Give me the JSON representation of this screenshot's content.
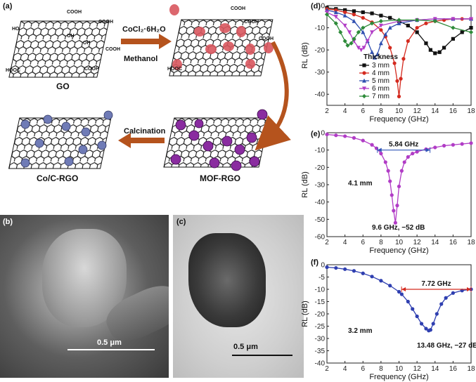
{
  "panels": {
    "a": "(a)",
    "b": "(b)",
    "c": "(c)",
    "d": "(d)",
    "e": "(e)",
    "f": "(f)"
  },
  "schematic": {
    "go_label": "GO",
    "reagent_top": "CoCl₂·6H₂O",
    "reagent_bottom": "Methanol",
    "mof_label": "MOF-RGO",
    "coc_label": "Co/C-RGO",
    "calcination": "Calcination",
    "cooh": "COOH",
    "hooc": "HOOC",
    "oh": "OH",
    "ho": "HO",
    "o": "O",
    "co2": "Co²⁺"
  },
  "micrographs": {
    "b_scale": "0.5 μm",
    "c_scale": "0.5 μm"
  },
  "chart_data": [
    {
      "id": "d",
      "type": "line",
      "xlabel": "Frequency (GHz)",
      "ylabel": "RL (dB)",
      "xlim": [
        2,
        18
      ],
      "ylim": [
        -45,
        0
      ],
      "xticks": [
        2,
        4,
        6,
        8,
        10,
        12,
        14,
        16,
        18
      ],
      "yticks": [
        0,
        -10,
        -20,
        -30,
        -40
      ],
      "legend_title": "Thickness",
      "series": [
        {
          "name": "3 mm",
          "color": "#111111",
          "marker": "square",
          "x": [
            2,
            3,
            4,
            5,
            6,
            7,
            8,
            9,
            10,
            11,
            12,
            13,
            13.5,
            14,
            14.5,
            15,
            16,
            17,
            18
          ],
          "y": [
            -1,
            -1.5,
            -2,
            -2.5,
            -3,
            -3.5,
            -4.5,
            -5.5,
            -7,
            -9,
            -12,
            -17,
            -20,
            -21.5,
            -21,
            -19,
            -15,
            -12,
            -10
          ]
        },
        {
          "name": "4 mm",
          "color": "#d42a1f",
          "marker": "circle",
          "x": [
            2,
            3,
            4,
            5,
            6,
            7,
            8,
            8.5,
            9,
            9.5,
            9.8,
            10,
            10.2,
            10.5,
            11,
            12,
            13,
            14,
            15,
            16,
            17,
            18
          ],
          "y": [
            -1.5,
            -2,
            -3,
            -4,
            -5.5,
            -7.5,
            -11,
            -14,
            -19,
            -26,
            -34,
            -41,
            -33,
            -24,
            -16,
            -10,
            -8,
            -7,
            -6.5,
            -6,
            -6,
            -6
          ]
        },
        {
          "name": "5 mm",
          "color": "#2f4fb0",
          "marker": "triangle",
          "x": [
            2,
            3,
            4,
            5,
            6,
            6.5,
            7,
            7.3,
            7.6,
            8,
            8.5,
            9,
            10,
            12,
            14,
            16,
            18
          ],
          "y": [
            -2,
            -3,
            -4.5,
            -7,
            -12,
            -16,
            -21,
            -23.5,
            -22,
            -17,
            -13,
            -10,
            -8,
            -6.5,
            -6,
            -6,
            -6
          ]
        },
        {
          "name": "6 mm",
          "color": "#b13cc6",
          "marker": "triangle-down",
          "x": [
            2,
            3,
            4,
            4.5,
            5,
            5.5,
            5.8,
            6.1,
            6.5,
            7,
            8,
            10,
            12,
            14,
            16,
            18
          ],
          "y": [
            -3,
            -5,
            -9,
            -12,
            -16,
            -19,
            -20,
            -19,
            -16,
            -12,
            -9,
            -7,
            -6.5,
            -6,
            -6,
            -6
          ]
        },
        {
          "name": "7 mm",
          "color": "#2e8b3a",
          "marker": "diamond",
          "x": [
            2,
            3,
            3.5,
            4,
            4.3,
            4.7,
            5,
            5.5,
            6,
            7,
            8,
            10,
            12,
            14,
            16,
            18
          ],
          "y": [
            -4,
            -8,
            -12,
            -16,
            -18,
            -17,
            -15,
            -12,
            -10,
            -8,
            -7,
            -6.5,
            -6.5,
            -7,
            -10,
            -12
          ]
        }
      ]
    },
    {
      "id": "e",
      "type": "line",
      "xlabel": "Frequency (GHz)",
      "ylabel": "RL (dB)",
      "xlim": [
        2,
        18
      ],
      "ylim": [
        -60,
        0
      ],
      "xticks": [
        2,
        4,
        6,
        8,
        10,
        12,
        14,
        16,
        18
      ],
      "yticks": [
        0,
        -10,
        -20,
        -30,
        -40,
        -50,
        -60
      ],
      "color": "#b13cc6",
      "x": [
        2,
        3,
        4,
        5,
        6,
        7,
        7.5,
        8,
        8.5,
        8.8,
        9,
        9.2,
        9.4,
        9.6,
        9.8,
        10,
        10.3,
        10.6,
        11,
        11.5,
        12,
        13,
        14,
        15,
        16,
        17,
        18
      ],
      "y": [
        -1,
        -1.5,
        -2,
        -3,
        -4.5,
        -7,
        -9,
        -12,
        -17,
        -22,
        -28,
        -36,
        -45,
        -52,
        -42,
        -31,
        -22,
        -17,
        -14,
        -12,
        -11,
        -9.5,
        -8.5,
        -7.5,
        -7,
        -6.5,
        -6
      ],
      "bandwidth_label": "5.84 GHz",
      "bandwidth_range": [
        7.6,
        13.44
      ],
      "bandwidth_level": -10,
      "thickness_label": "4.1 mm",
      "peak_label": "9.6 GHz, −52 dB"
    },
    {
      "id": "f",
      "type": "line",
      "xlabel": "Frequency (GHz)",
      "ylabel": "RL (dB)",
      "xlim": [
        2,
        18
      ],
      "ylim": [
        -40,
        0
      ],
      "xticks": [
        2,
        4,
        6,
        8,
        10,
        12,
        14,
        16,
        18
      ],
      "yticks": [
        0,
        -5,
        -10,
        -15,
        -20,
        -25,
        -30,
        -35,
        -40
      ],
      "color": "#2f3fb0",
      "x": [
        2,
        3,
        4,
        5,
        6,
        7,
        8,
        9,
        10,
        10.3,
        11,
        11.5,
        12,
        12.5,
        13,
        13.3,
        13.5,
        13.8,
        14.2,
        14.7,
        15.2,
        16,
        17,
        18
      ],
      "y": [
        -1,
        -1.3,
        -1.8,
        -2.5,
        -3.5,
        -4.8,
        -6.5,
        -8.5,
        -11,
        -12,
        -15,
        -18,
        -21,
        -24,
        -26,
        -26.8,
        -26.5,
        -24,
        -20,
        -16,
        -13.5,
        -11.5,
        -10.5,
        -10
      ],
      "bandwidth_label": "7.72 GHz",
      "bandwidth_range": [
        10.28,
        18
      ],
      "bandwidth_level": -10,
      "thickness_label": "3.2 mm",
      "peak_label": "13.48 GHz, −27 dB"
    }
  ]
}
